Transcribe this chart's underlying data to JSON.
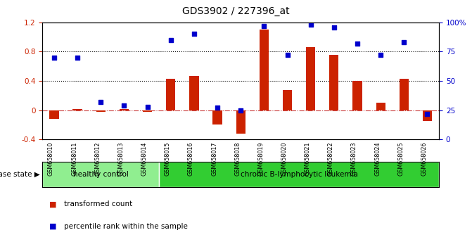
{
  "title": "GDS3902 / 227396_at",
  "samples": [
    "GSM658010",
    "GSM658011",
    "GSM658012",
    "GSM658013",
    "GSM658014",
    "GSM658015",
    "GSM658016",
    "GSM658017",
    "GSM658018",
    "GSM658019",
    "GSM658020",
    "GSM658021",
    "GSM658022",
    "GSM658023",
    "GSM658024",
    "GSM658025",
    "GSM658026"
  ],
  "transformed_count": [
    -0.12,
    0.02,
    -0.02,
    0.02,
    -0.02,
    0.43,
    0.47,
    -0.2,
    -0.32,
    1.1,
    0.28,
    0.86,
    0.76,
    0.4,
    0.1,
    0.43,
    -0.15
  ],
  "percentile_rank": [
    70,
    70,
    32,
    29,
    28,
    85,
    90,
    27,
    25,
    97,
    72,
    98,
    96,
    82,
    72,
    83,
    22
  ],
  "groups": [
    {
      "label": "healthy control",
      "start": 0,
      "end": 5,
      "color": "#90ee90"
    },
    {
      "label": "chronic B-lymphocytic leukemia",
      "start": 5,
      "end": 17,
      "color": "#32cd32"
    }
  ],
  "disease_state_label": "disease state",
  "bar_color": "#cc2200",
  "dot_color": "#0000cc",
  "left_ylim": [
    -0.4,
    1.2
  ],
  "right_ylim": [
    0,
    100
  ],
  "left_yticks": [
    -0.4,
    0.0,
    0.4,
    0.8,
    1.2
  ],
  "right_yticks": [
    0,
    25,
    50,
    75,
    100
  ],
  "right_yticklabels": [
    "0",
    "25",
    "50",
    "75",
    "100%"
  ],
  "left_yticklabels": [
    "-0.4",
    "0",
    "0.4",
    "0.8",
    "1.2"
  ],
  "hlines": [
    0.0,
    0.4,
    0.8
  ],
  "hline_styles": [
    "dashdot",
    "dotted",
    "dotted"
  ],
  "hline_colors": [
    "#cc4444",
    "black",
    "black"
  ],
  "legend_items": [
    {
      "label": "transformed count",
      "color": "#cc2200",
      "marker": "s"
    },
    {
      "label": "percentile rank within the sample",
      "color": "#0000cc",
      "marker": "s"
    }
  ],
  "background_color": "#ffffff",
  "plot_bg_color": "#ffffff",
  "group_bg_color": "#c8c8c8",
  "bar_width": 0.4
}
